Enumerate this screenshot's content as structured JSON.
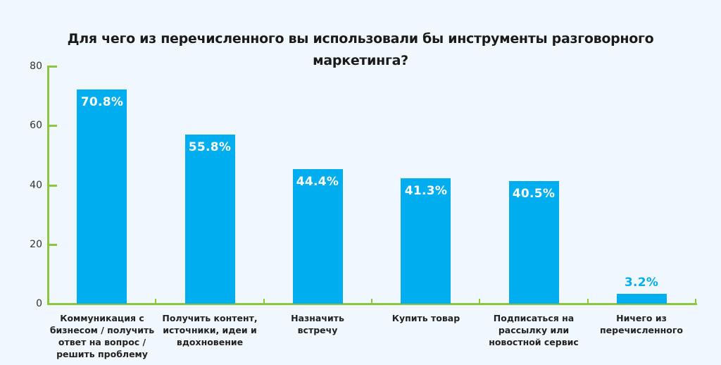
{
  "chart": {
    "title_line1": "Для чего из перечисленного вы использовали бы инструменты разговорного",
    "title_line2": "маркетинга?",
    "y_ticks": [
      "80",
      "60",
      "40",
      "20",
      "0"
    ],
    "bars": [
      {
        "label_lines": [
          "Коммуникация с",
          "бизнесом / получить",
          "ответ на вопрос /",
          "решить проблему"
        ],
        "value": 70.8,
        "display": "70.8%"
      },
      {
        "label_lines": [
          "Получить контент,",
          "источники, идеи и",
          "вдохновение"
        ],
        "value": 55.8,
        "display": "55.8%"
      },
      {
        "label_lines": [
          "Назначить",
          "встречу"
        ],
        "value": 44.4,
        "display": "44.4%"
      },
      {
        "label_lines": [
          "Купить товар"
        ],
        "value": 41.3,
        "display": "41.3%"
      },
      {
        "label_lines": [
          "Подписаться на",
          "рассылку или",
          "новостной сервис"
        ],
        "value": 40.5,
        "display": "40.5%"
      },
      {
        "label_lines": [
          "Ничего из",
          "перечисленного"
        ],
        "value": 3.2,
        "display": "3.2%"
      }
    ],
    "colors": {
      "bar": "#00aeef",
      "axis": "#8cc63f",
      "background": "#f0f8fd"
    }
  },
  "chart_data": {
    "type": "bar",
    "title": "Для чего из перечисленного вы использовали бы инструменты разговорного маркетинга?",
    "categories": [
      "Коммуникация с бизнесом / получить ответ на вопрос / решить проблему",
      "Получить контент, источники, идеи и вдохновение",
      "Назначить встречу",
      "Купить товар",
      "Подписаться на рассылку или новостной сервис",
      "Ничего из перечисленного"
    ],
    "values": [
      70.8,
      55.8,
      44.4,
      41.3,
      40.5,
      3.2
    ],
    "value_labels": [
      "70.8%",
      "55.8%",
      "44.4%",
      "41.3%",
      "40.5%",
      "3.2%"
    ],
    "xlabel": "",
    "ylabel": "",
    "ylim": [
      0,
      80
    ],
    "yticks": [
      0,
      20,
      40,
      60,
      80
    ],
    "grid": false,
    "legend": null
  }
}
